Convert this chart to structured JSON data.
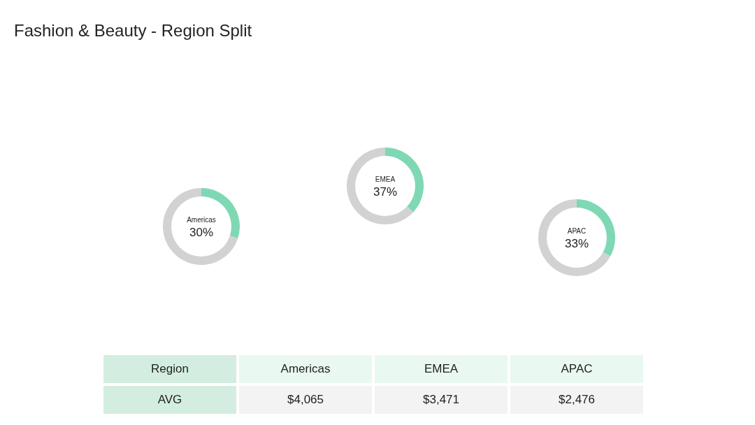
{
  "chart_data": [
    {
      "type": "donut",
      "title": "Fashion & Beauty - Region Split",
      "categories": [
        "Americas",
        null
      ],
      "values": [
        30,
        70
      ],
      "colors": [
        "#7fd8b4",
        "#d2d2d2"
      ],
      "value_labels": [
        "30%",
        null
      ]
    },
    {
      "type": "donut",
      "categories": [
        "EMEA",
        null
      ],
      "values": [
        37,
        63
      ],
      "colors": [
        "#7fd8b4",
        "#d2d2d2"
      ],
      "value_labels": [
        "37%",
        null
      ]
    },
    {
      "type": "donut",
      "categories": [
        "APAC",
        null
      ],
      "values": [
        33,
        67
      ],
      "colors": [
        "#7fd8b4",
        "#d2d2d2"
      ],
      "value_labels": [
        "33%",
        null
      ]
    },
    {
      "type": "other",
      "xlabel": "Region",
      "ylabel": "AVG",
      "categories": [
        "Americas",
        "EMEA",
        "APAC"
      ],
      "values": [
        4065,
        3471,
        2476
      ],
      "value_labels": [
        "$4,065",
        "$3,471",
        "$2,476"
      ]
    }
  ]
}
